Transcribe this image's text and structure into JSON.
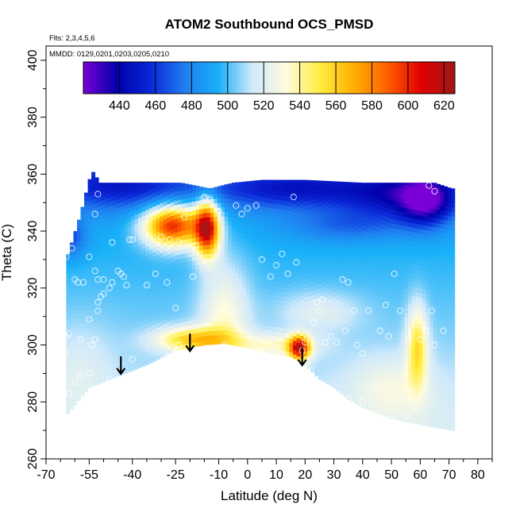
{
  "chart_data": {
    "type": "heatmap",
    "title": "ATOM2 Southbound OCS_PMSD",
    "annotations": {
      "flights": "Flts: 2,3,4,5,6",
      "dates": "MMDD: 0129,0201,0203,0205,0210"
    },
    "xlabel": "Latitude (deg N)",
    "ylabel": "Theta (C)",
    "xlim": [
      -70,
      85
    ],
    "ylim": [
      260,
      405
    ],
    "x_ticks": [
      -70,
      -55,
      -40,
      -25,
      -10,
      0,
      10,
      20,
      30,
      40,
      50,
      60,
      70,
      80
    ],
    "y_ticks": [
      260,
      280,
      300,
      320,
      340,
      360,
      380,
      400
    ],
    "colorbar": {
      "range": [
        420,
        626
      ],
      "ticks": [
        440,
        460,
        480,
        500,
        520,
        540,
        560,
        580,
        600,
        620
      ],
      "colors": [
        "#7a00d8",
        "#0000aa",
        "#0a28d8",
        "#1f7ef0",
        "#18b0f8",
        "#cfe9fb",
        "#fffbe0",
        "#ffee40",
        "#ffb000",
        "#ff6000",
        "#e00000",
        "#a01818"
      ]
    },
    "field_background": 500,
    "field_blobs": [
      {
        "x": -26,
        "y": 342,
        "sx": 7,
        "sy": 5,
        "value": 108
      },
      {
        "x": -14,
        "y": 341,
        "sx": 3,
        "sy": 7,
        "value": 110
      },
      {
        "x": -45,
        "y": 356,
        "sx": 18,
        "sy": 6,
        "value": -38
      },
      {
        "x": 15,
        "y": 355,
        "sx": 20,
        "sy": 5,
        "value": -40
      },
      {
        "x": 55,
        "y": 353,
        "sx": 15,
        "sy": 6,
        "value": -45
      },
      {
        "x": 62,
        "y": 350,
        "sx": 6,
        "sy": 6,
        "value": -45
      },
      {
        "x": 35,
        "y": 342,
        "sx": 15,
        "sy": 4,
        "value": -20
      },
      {
        "x": -62,
        "y": 338,
        "sx": 4,
        "sy": 5,
        "value": -30
      },
      {
        "x": -19,
        "y": 302,
        "sx": 9,
        "sy": 3,
        "value": 55
      },
      {
        "x": 18,
        "y": 299,
        "sx": 2.5,
        "sy": 3,
        "value": 100
      },
      {
        "x": 59,
        "y": 300,
        "sx": 2.5,
        "sy": 10,
        "value": 48
      },
      {
        "x": -8,
        "y": 310,
        "sx": 6,
        "sy": 15,
        "value": 30
      },
      {
        "x": 10,
        "y": 300,
        "sx": 10,
        "sy": 3,
        "value": 28
      },
      {
        "x": -58,
        "y": 292,
        "sx": 8,
        "sy": 12,
        "value": 10
      },
      {
        "x": 50,
        "y": 285,
        "sx": 10,
        "sy": 8,
        "value": 18
      },
      {
        "x": 25,
        "y": 312,
        "sx": 10,
        "sy": 5,
        "value": 18
      }
    ],
    "boundaries": {
      "top": [
        [
          -63,
          330
        ],
        [
          -58,
          346
        ],
        [
          -55,
          358
        ],
        [
          -53,
          362
        ],
        [
          -52,
          357
        ],
        [
          -30,
          357
        ],
        [
          -23,
          357
        ],
        [
          -13,
          355
        ],
        [
          -5,
          357
        ],
        [
          5,
          358
        ],
        [
          20,
          358
        ],
        [
          40,
          357
        ],
        [
          60,
          357
        ],
        [
          65,
          357
        ],
        [
          71,
          355
        ]
      ],
      "bottom": [
        [
          -63,
          275
        ],
        [
          -55,
          285
        ],
        [
          -45,
          289
        ],
        [
          -35,
          293
        ],
        [
          -25,
          298
        ],
        [
          -15,
          300
        ],
        [
          -8,
          300.5
        ],
        [
          0,
          299
        ],
        [
          8,
          297
        ],
        [
          15,
          296
        ],
        [
          20,
          293
        ],
        [
          25,
          288
        ],
        [
          30,
          285
        ],
        [
          35,
          281
        ],
        [
          40,
          278
        ],
        [
          45,
          276
        ],
        [
          50,
          274
        ],
        [
          55,
          273
        ],
        [
          60,
          272
        ],
        [
          65,
          271
        ],
        [
          71,
          270
        ]
      ]
    },
    "observations": [
      [
        -63,
        331
      ],
      [
        -62,
        337
      ],
      [
        -61,
        334
      ],
      [
        -60,
        323
      ],
      [
        -59,
        322
      ],
      [
        -57,
        322
      ],
      [
        -55,
        331
      ],
      [
        -53,
        326
      ],
      [
        -52,
        323
      ],
      [
        -52,
        353
      ],
      [
        -53,
        346
      ],
      [
        -50,
        323
      ],
      [
        -50,
        318
      ],
      [
        -52,
        315
      ],
      [
        -51,
        317
      ],
      [
        -48,
        320
      ],
      [
        -47,
        322
      ],
      [
        -47,
        336
      ],
      [
        -45,
        326
      ],
      [
        -44,
        325
      ],
      [
        -43,
        324
      ],
      [
        -42,
        321
      ],
      [
        -41,
        337
      ],
      [
        -40,
        337
      ],
      [
        -35,
        321
      ],
      [
        -32,
        325
      ],
      [
        -30,
        338
      ],
      [
        -28,
        322
      ],
      [
        -27,
        337
      ],
      [
        -24,
        348
      ],
      [
        -22,
        345
      ],
      [
        -25,
        313
      ],
      [
        -24,
        300
      ],
      [
        -24,
        336
      ],
      [
        -19,
        324
      ],
      [
        -18,
        335
      ],
      [
        -15,
        352
      ],
      [
        -13,
        351
      ],
      [
        -10,
        347
      ],
      [
        -4,
        349
      ],
      [
        -2,
        346
      ],
      [
        0,
        348
      ],
      [
        3,
        349
      ],
      [
        5,
        330
      ],
      [
        8,
        324
      ],
      [
        10,
        328
      ],
      [
        12,
        332
      ],
      [
        14,
        325
      ],
      [
        16,
        352
      ],
      [
        17,
        329
      ],
      [
        19,
        298
      ],
      [
        20,
        301
      ],
      [
        21,
        294
      ],
      [
        22,
        291
      ],
      [
        23,
        308
      ],
      [
        24,
        315
      ],
      [
        25,
        312
      ],
      [
        26,
        316
      ],
      [
        27,
        301
      ],
      [
        29,
        303
      ],
      [
        31,
        301
      ],
      [
        33,
        323
      ],
      [
        34,
        305
      ],
      [
        35,
        322
      ],
      [
        37,
        312
      ],
      [
        38,
        300
      ],
      [
        40,
        297
      ],
      [
        42,
        312
      ],
      [
        44,
        286
      ],
      [
        46,
        305
      ],
      [
        48,
        314
      ],
      [
        49,
        303
      ],
      [
        51,
        325
      ],
      [
        53,
        312
      ],
      [
        56,
        302
      ],
      [
        57,
        284
      ],
      [
        58,
        278
      ],
      [
        60,
        302
      ],
      [
        60,
        307
      ],
      [
        62,
        305
      ],
      [
        64,
        312
      ],
      [
        65,
        300
      ],
      [
        68,
        305
      ],
      [
        -63,
        297
      ],
      [
        -62,
        304
      ],
      [
        -58,
        302
      ],
      [
        -55,
        309
      ],
      [
        -54,
        300
      ],
      [
        -53,
        302
      ],
      [
        -52,
        312
      ],
      [
        -50,
        284
      ],
      [
        -48,
        288
      ],
      [
        -62,
        283
      ],
      [
        -45,
        278
      ],
      [
        -40,
        295
      ],
      [
        -38,
        280
      ],
      [
        -28,
        296
      ],
      [
        -20,
        297
      ],
      [
        -8,
        300
      ],
      [
        0,
        297
      ],
      [
        10,
        299
      ],
      [
        25,
        285
      ],
      [
        30,
        283
      ],
      [
        35,
        281
      ],
      [
        40,
        280
      ],
      [
        45,
        276
      ],
      [
        50,
        274
      ],
      [
        55,
        275
      ],
      [
        63,
        356
      ],
      [
        65,
        354
      ],
      [
        -55,
        290
      ],
      [
        -58,
        289
      ],
      [
        -60,
        287
      ],
      [
        -63,
        303
      ]
    ],
    "arrows": [
      [
        -44,
        296
      ],
      [
        -20,
        304
      ],
      [
        19,
        299
      ]
    ]
  }
}
